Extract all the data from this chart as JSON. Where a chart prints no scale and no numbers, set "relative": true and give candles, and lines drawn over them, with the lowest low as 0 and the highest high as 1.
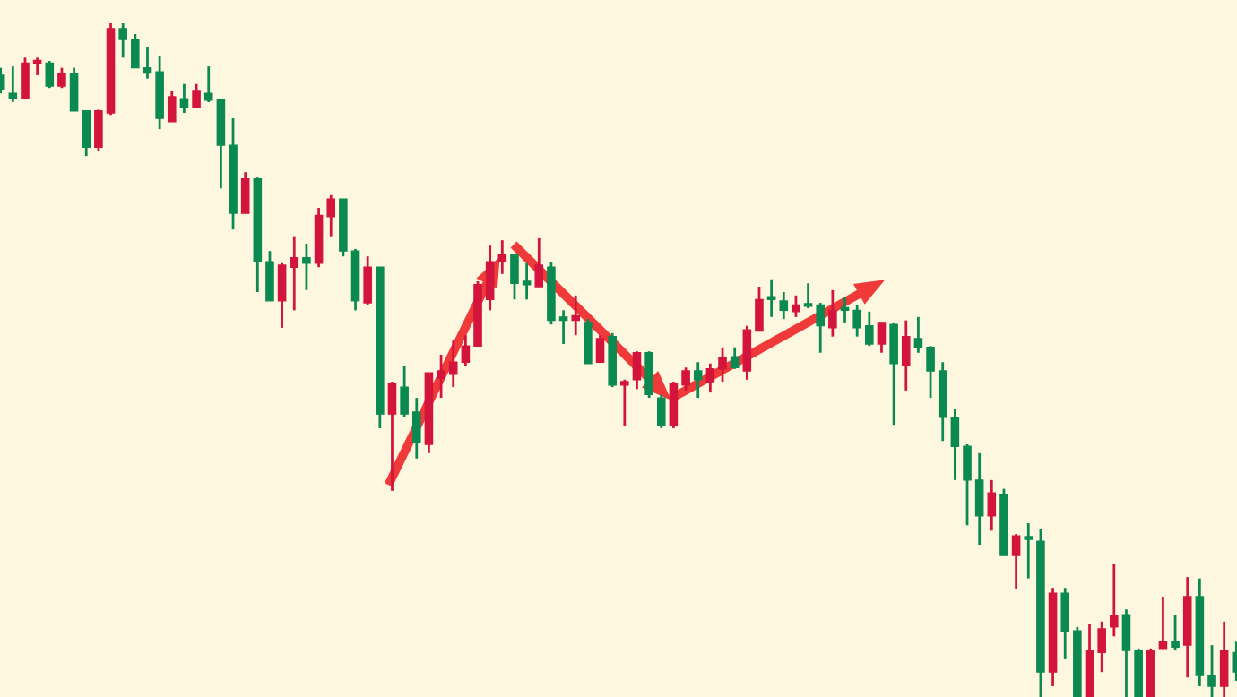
{
  "chart_data": {
    "type": "candlestick",
    "relative": true,
    "categories": [
      null,
      null,
      null,
      null,
      null,
      null,
      null,
      null,
      null,
      null,
      null,
      null,
      null,
      null,
      null,
      null,
      null,
      null,
      null,
      null,
      null,
      null,
      null,
      null,
      null,
      null,
      null,
      null,
      null,
      null,
      null,
      null,
      null,
      null,
      null,
      null,
      null,
      null,
      null,
      null,
      null,
      null,
      null,
      null,
      null,
      null,
      null,
      null,
      null,
      null,
      null,
      null,
      null,
      null,
      null,
      null,
      null,
      null,
      null,
      null,
      null,
      null,
      null,
      null,
      null,
      null,
      null,
      null,
      null,
      null,
      null,
      null,
      null,
      null,
      null,
      null,
      null,
      null,
      null,
      null,
      null,
      null,
      null,
      null,
      null,
      null,
      null,
      null,
      null,
      null,
      null,
      null,
      null,
      null,
      null,
      null,
      null,
      null,
      null,
      null,
      null,
      null
    ],
    "ohlc": [
      [
        0.923,
        0.934,
        0.896,
        0.902
      ],
      [
        0.896,
        0.936,
        0.883,
        0.888
      ],
      [
        0.888,
        0.949,
        0.888,
        0.941
      ],
      [
        0.941,
        0.949,
        0.923,
        0.944
      ],
      [
        0.941,
        0.944,
        0.904,
        0.907
      ],
      [
        0.907,
        0.934,
        0.904,
        0.926
      ],
      [
        0.926,
        0.934,
        0.87,
        0.87
      ],
      [
        0.87,
        0.87,
        0.803,
        0.816
      ],
      [
        0.816,
        0.872,
        0.811,
        0.87
      ],
      [
        0.867,
        1.0,
        0.864,
        0.992
      ],
      [
        0.992,
        1.0,
        0.949,
        0.976
      ],
      [
        0.976,
        0.984,
        0.934,
        0.934
      ],
      [
        0.934,
        0.965,
        0.918,
        0.926
      ],
      [
        0.928,
        0.952,
        0.843,
        0.859
      ],
      [
        0.854,
        0.899,
        0.854,
        0.891
      ],
      [
        0.888,
        0.91,
        0.867,
        0.875
      ],
      [
        0.875,
        0.91,
        0.875,
        0.899
      ],
      [
        0.896,
        0.936,
        0.883,
        0.886
      ],
      [
        0.886,
        0.886,
        0.755,
        0.819
      ],
      [
        0.819,
        0.859,
        0.694,
        0.718
      ],
      [
        0.718,
        0.779,
        0.718,
        0.769
      ],
      [
        0.769,
        0.771,
        0.601,
        0.646
      ],
      [
        0.646,
        0.662,
        0.588,
        0.588
      ],
      [
        0.588,
        0.644,
        0.548,
        0.641
      ],
      [
        0.638,
        0.684,
        0.574,
        0.652
      ],
      [
        0.652,
        0.673,
        0.604,
        0.644
      ],
      [
        0.644,
        0.726,
        0.638,
        0.715
      ],
      [
        0.713,
        0.745,
        0.684,
        0.739
      ],
      [
        0.739,
        0.739,
        0.654,
        0.662
      ],
      [
        0.662,
        0.665,
        0.574,
        0.588
      ],
      [
        0.585,
        0.654,
        0.582,
        0.638
      ],
      [
        0.638,
        0.638,
        0.399,
        0.42
      ],
      [
        0.42,
        0.468,
        0.306,
        0.465
      ],
      [
        0.46,
        0.492,
        0.415,
        0.42
      ],
      [
        0.423,
        0.444,
        0.354,
        0.378
      ],
      [
        0.375,
        0.481,
        0.362,
        0.481
      ],
      [
        0.473,
        0.508,
        0.444,
        0.484
      ],
      [
        0.479,
        0.529,
        0.46,
        0.497
      ],
      [
        0.497,
        0.537,
        0.492,
        0.521
      ],
      [
        0.521,
        0.617,
        0.521,
        0.612
      ],
      [
        0.59,
        0.67,
        0.574,
        0.646
      ],
      [
        0.646,
        0.678,
        0.628,
        0.657
      ],
      [
        0.657,
        0.657,
        0.59,
        0.614
      ],
      [
        0.617,
        0.644,
        0.59,
        0.612
      ],
      [
        0.609,
        0.681,
        0.609,
        0.641
      ],
      [
        0.638,
        0.646,
        0.553,
        0.559
      ],
      [
        0.564,
        0.574,
        0.524,
        0.559
      ],
      [
        0.559,
        0.596,
        0.537,
        0.566
      ],
      [
        0.556,
        0.561,
        0.495,
        0.495
      ],
      [
        0.497,
        0.537,
        0.497,
        0.532
      ],
      [
        0.535,
        0.54,
        0.46,
        0.463
      ],
      [
        0.463,
        0.471,
        0.402,
        0.468
      ],
      [
        0.471,
        0.513,
        0.457,
        0.511
      ],
      [
        0.511,
        0.513,
        0.444,
        0.449
      ],
      [
        0.444,
        0.449,
        0.399,
        0.404
      ],
      [
        0.404,
        0.468,
        0.399,
        0.465
      ],
      [
        0.463,
        0.489,
        0.455,
        0.484
      ],
      [
        0.484,
        0.497,
        0.444,
        0.471
      ],
      [
        0.468,
        0.495,
        0.452,
        0.487
      ],
      [
        0.487,
        0.519,
        0.468,
        0.503
      ],
      [
        0.505,
        0.519,
        0.487,
        0.489
      ],
      [
        0.484,
        0.551,
        0.471,
        0.545
      ],
      [
        0.543,
        0.609,
        0.543,
        0.59
      ],
      [
        0.593,
        0.62,
        0.564,
        0.59
      ],
      [
        0.588,
        0.601,
        0.561,
        0.574
      ],
      [
        0.572,
        0.596,
        0.564,
        0.582
      ],
      [
        0.582,
        0.614,
        0.577,
        0.58
      ],
      [
        0.582,
        0.585,
        0.511,
        0.551
      ],
      [
        0.548,
        0.604,
        0.535,
        0.574
      ],
      [
        0.577,
        0.593,
        0.556,
        0.574
      ],
      [
        0.574,
        0.582,
        0.535,
        0.548
      ],
      [
        0.551,
        0.572,
        0.521,
        0.524
      ],
      [
        0.524,
        0.556,
        0.511,
        0.556
      ],
      [
        0.553,
        0.556,
        0.404,
        0.495
      ],
      [
        0.492,
        0.559,
        0.455,
        0.535
      ],
      [
        0.532,
        0.564,
        0.511,
        0.519
      ],
      [
        0.519,
        0.521,
        0.444,
        0.484
      ],
      [
        0.484,
        0.497,
        0.38,
        0.415
      ],
      [
        0.415,
        0.428,
        0.322,
        0.372
      ],
      [
        0.372,
        0.375,
        0.255,
        0.322
      ],
      [
        0.322,
        0.362,
        0.226,
        0.269
      ],
      [
        0.269,
        0.322,
        0.247,
        0.303
      ],
      [
        0.301,
        0.309,
        0.21,
        0.21
      ],
      [
        0.21,
        0.242,
        0.16,
        0.239
      ],
      [
        0.237,
        0.258,
        0.176,
        0.234
      ],
      [
        0.231,
        0.25,
        0.0,
        0.037
      ],
      [
        0.037,
        0.162,
        0.016,
        0.154
      ],
      [
        0.154,
        0.162,
        0.056,
        0.098
      ],
      [
        0.098,
        0.104,
        0.0,
        0.0
      ],
      [
        0.0,
        0.109,
        0.0,
        0.069
      ],
      [
        0.066,
        0.112,
        0.037,
        0.101
      ],
      [
        0.104,
        0.197,
        0.09,
        0.12
      ],
      [
        0.122,
        0.13,
        0.0,
        0.069
      ],
      [
        0.069,
        0.072,
        0.0,
        0.0
      ],
      [
        0.0,
        0.072,
        0.0,
        0.069
      ],
      [
        0.072,
        0.149,
        0.072,
        0.082
      ],
      [
        0.082,
        0.122,
        0.069,
        0.074
      ],
      [
        0.077,
        0.178,
        0.029,
        0.149
      ],
      [
        0.149,
        0.176,
        0.016,
        0.032
      ],
      [
        0.032,
        0.077,
        0.0,
        0.016
      ],
      [
        0.016,
        0.112,
        0.0,
        0.069
      ],
      [
        0.066,
        0.082,
        0.024,
        0.037
      ]
    ],
    "colors": [
      "#0a8a50",
      "#0a8a50",
      "#d3143c",
      "#d3143c",
      "#0a8a50",
      "#d3143c",
      "#0a8a50",
      "#0a8a50",
      "#d3143c",
      "#d3143c",
      "#0a8a50",
      "#0a8a50",
      "#0a8a50",
      "#0a8a50",
      "#d3143c",
      "#0a8a50",
      "#d3143c",
      "#0a8a50",
      "#0a8a50",
      "#0a8a50",
      "#d3143c",
      "#0a8a50",
      "#0a8a50",
      "#d3143c",
      "#d3143c",
      "#0a8a50",
      "#d3143c",
      "#d3143c",
      "#0a8a50",
      "#0a8a50",
      "#d3143c",
      "#0a8a50",
      "#d3143c",
      "#0a8a50",
      "#0a8a50",
      "#d3143c",
      "#d3143c",
      "#d3143c",
      "#d3143c",
      "#d3143c",
      "#d3143c",
      "#d3143c",
      "#0a8a50",
      "#0a8a50",
      "#d3143c",
      "#0a8a50",
      "#0a8a50",
      "#d3143c",
      "#0a8a50",
      "#d3143c",
      "#0a8a50",
      "#d3143c",
      "#d3143c",
      "#0a8a50",
      "#0a8a50",
      "#d3143c",
      "#d3143c",
      "#0a8a50",
      "#d3143c",
      "#d3143c",
      "#0a8a50",
      "#d3143c",
      "#d3143c",
      "#0a8a50",
      "#0a8a50",
      "#d3143c",
      "#0a8a50",
      "#0a8a50",
      "#d3143c",
      "#0a8a50",
      "#0a8a50",
      "#0a8a50",
      "#d3143c",
      "#0a8a50",
      "#d3143c",
      "#0a8a50",
      "#0a8a50",
      "#0a8a50",
      "#0a8a50",
      "#0a8a50",
      "#0a8a50",
      "#d3143c",
      "#0a8a50",
      "#d3143c",
      "#0a8a50",
      "#0a8a50",
      "#d3143c",
      "#0a8a50",
      "#0a8a50",
      "#d3143c",
      "#d3143c",
      "#d3143c",
      "#0a8a50",
      "#0a8a50",
      "#d3143c",
      "#d3143c",
      "#0a8a50",
      "#d3143c",
      "#0a8a50",
      "#0a8a50",
      "#d3143c",
      "#0a8a50"
    ]
  }
}
